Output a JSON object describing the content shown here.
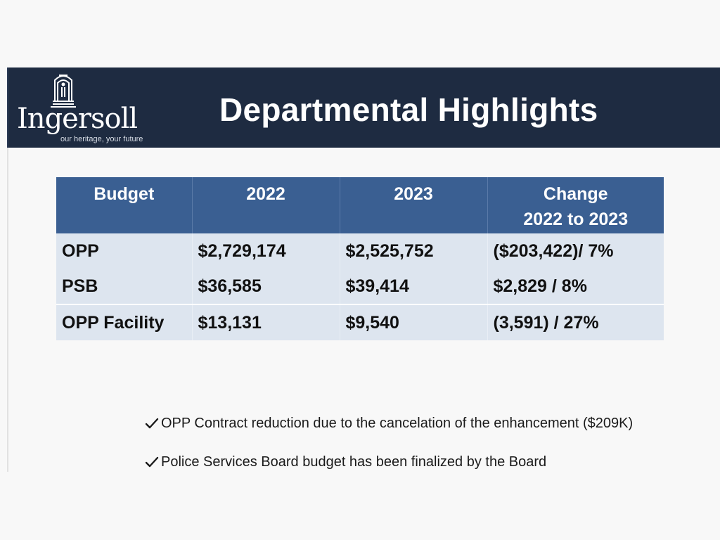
{
  "header": {
    "title": "Departmental Highlights",
    "logo": {
      "name": "Ingersoll",
      "tagline": "our heritage, your future"
    }
  },
  "table": {
    "columns": [
      "Budget",
      "2022",
      "2023",
      "Change"
    ],
    "change_subheader": "2022 to 2023",
    "rows": [
      {
        "label": "OPP",
        "y2022": "$2,729,174",
        "y2023": "$2,525,752",
        "change": "($203,422)/ 7%"
      },
      {
        "label": "PSB",
        "y2022": "$36,585",
        "y2023": "$39,414",
        "change": "$2,829 / 8%"
      },
      {
        "label": "OPP Facility",
        "y2022": "$13,131",
        "y2023": "$9,540",
        "change": "(3,591) / 27%"
      }
    ]
  },
  "notes": [
    "OPP Contract reduction due to the cancelation of the enhancement ($209K)",
    "Police Services Board budget has been finalized by the Board"
  ],
  "colors": {
    "header_bg": "#1e2b41",
    "table_header_bg": "#3a5f92",
    "table_body_bg": "#dde5ef"
  }
}
